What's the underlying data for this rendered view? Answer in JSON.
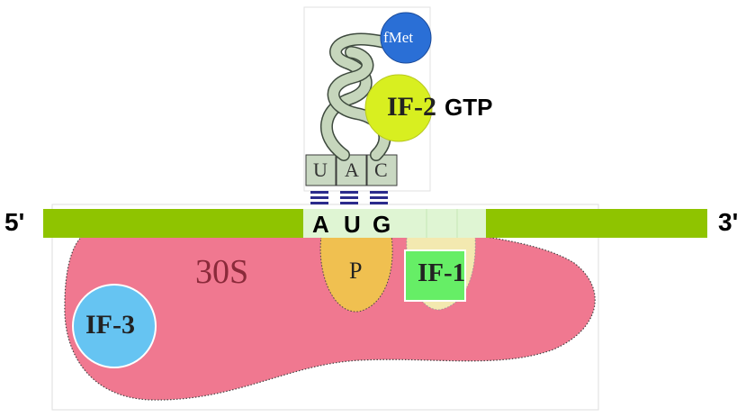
{
  "mrna": {
    "five_prime": "5'",
    "three_prime": "3'",
    "codon": [
      "A",
      "U",
      "G"
    ],
    "color": "#8fc400"
  },
  "anticodon": [
    "U",
    "A",
    "C"
  ],
  "subunit": {
    "label": "30S",
    "color": "#f07890"
  },
  "p_site": {
    "label": "P",
    "color": "#f0c050"
  },
  "factors": {
    "if1": {
      "label": "IF-1",
      "color": "#66ee66"
    },
    "if2": {
      "label": "IF-2",
      "suffix": "GTP",
      "color": "#d8ef20"
    },
    "if3": {
      "label": "IF-3",
      "color": "#66c4f2"
    }
  },
  "fmet": {
    "label": "fMet",
    "color": "#2a6fd6"
  }
}
